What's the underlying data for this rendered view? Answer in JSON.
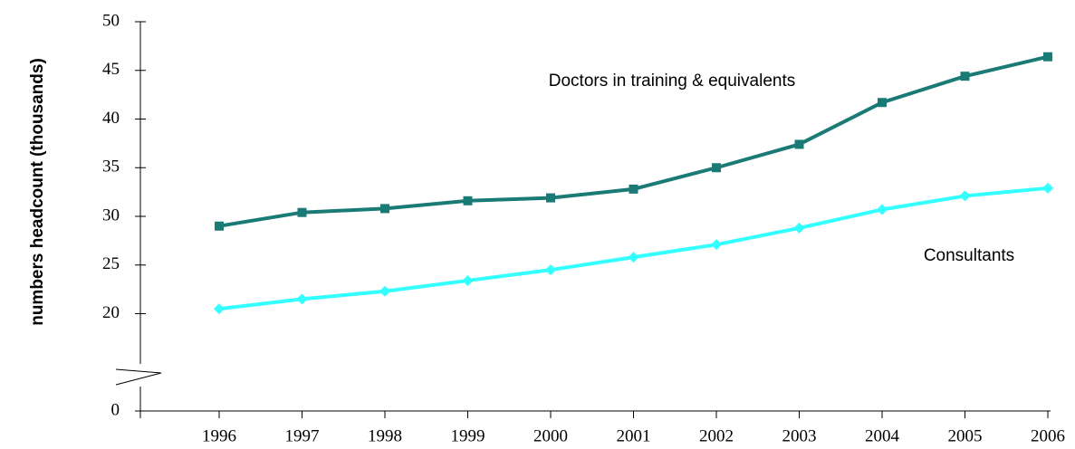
{
  "chart_data": {
    "type": "line",
    "y_label": "numbers headcount (thousands)",
    "categories": [
      "1996",
      "1997",
      "1998",
      "1999",
      "2000",
      "2001",
      "2002",
      "2003",
      "2004",
      "2005",
      "2006"
    ],
    "series": [
      {
        "name": "Doctors in training & equivalents",
        "color": "#1a7a75",
        "marker": "square",
        "values": [
          29.0,
          30.4,
          30.8,
          31.6,
          31.9,
          32.8,
          35.0,
          37.4,
          41.7,
          44.4,
          46.4
        ]
      },
      {
        "name": "Consultants",
        "color": "#33ffff",
        "marker": "diamond",
        "values": [
          20.5,
          21.5,
          22.3,
          23.4,
          24.5,
          25.8,
          27.1,
          28.8,
          30.7,
          32.1,
          32.9
        ]
      }
    ],
    "ylim": [
      0,
      50
    ],
    "yticks": [
      0,
      20,
      25,
      30,
      35,
      40,
      45,
      50
    ],
    "axis_break": [
      0,
      10
    ],
    "grid": false
  }
}
